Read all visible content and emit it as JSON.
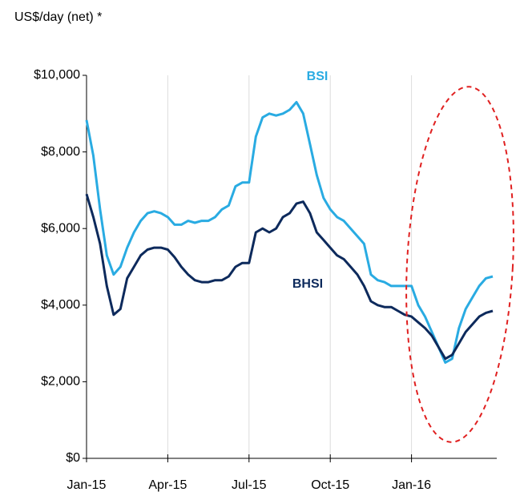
{
  "chart_data": {
    "type": "line",
    "y_axis_label": "US$/day (net) *",
    "x": [
      0,
      0.25,
      0.5,
      0.75,
      1,
      1.25,
      1.5,
      1.75,
      2,
      2.25,
      2.5,
      2.75,
      3,
      3.25,
      3.5,
      3.75,
      4,
      4.25,
      4.5,
      4.75,
      5,
      5.25,
      5.5,
      5.75,
      6,
      6.25,
      6.5,
      6.75,
      7,
      7.25,
      7.5,
      7.75,
      8,
      8.25,
      8.5,
      8.75,
      9,
      9.25,
      9.5,
      9.75,
      10,
      10.25,
      10.5,
      10.75,
      11,
      11.25,
      11.5,
      11.75,
      12,
      12.25,
      12.5,
      12.75,
      13,
      13.25,
      13.5,
      13.75,
      14,
      14.25,
      14.5,
      14.75,
      15
    ],
    "series": [
      {
        "name": "BSI",
        "color": "#29abe2",
        "values": [
          8830,
          7900,
          6500,
          5300,
          4800,
          5000,
          5500,
          5900,
          6200,
          6400,
          6450,
          6400,
          6300,
          6100,
          6100,
          6200,
          6150,
          6200,
          6200,
          6300,
          6500,
          6600,
          7100,
          7200,
          7200,
          8400,
          8900,
          9000,
          8950,
          9000,
          9100,
          9300,
          9000,
          8200,
          7400,
          6800,
          6500,
          6300,
          6200,
          6000,
          5800,
          5600,
          4800,
          4650,
          4600,
          4500,
          4500,
          4500,
          4500,
          4000,
          3700,
          3300,
          2900,
          2500,
          2600,
          3400,
          3900,
          4200,
          4500,
          4700,
          4750
        ]
      },
      {
        "name": "BHSI",
        "color": "#0d2a5c",
        "values": [
          6900,
          6300,
          5600,
          4500,
          3750,
          3900,
          4700,
          5000,
          5300,
          5450,
          5500,
          5500,
          5450,
          5250,
          5000,
          4800,
          4650,
          4600,
          4600,
          4650,
          4650,
          4750,
          5000,
          5100,
          5100,
          5900,
          6000,
          5900,
          6000,
          6300,
          6400,
          6650,
          6700,
          6400,
          5900,
          5700,
          5500,
          5300,
          5200,
          5000,
          4800,
          4500,
          4100,
          4000,
          3950,
          3950,
          3850,
          3750,
          3700,
          3550,
          3400,
          3200,
          2900,
          2600,
          2700,
          3000,
          3300,
          3500,
          3700,
          3800,
          3850
        ]
      }
    ],
    "xlim": [
      0,
      15
    ],
    "xticks": [
      {
        "value": 0,
        "label": "Jan-15"
      },
      {
        "value": 3,
        "label": "Apr-15"
      },
      {
        "value": 6,
        "label": "Jul-15"
      },
      {
        "value": 9,
        "label": "Oct-15"
      },
      {
        "value": 12,
        "label": "Jan-16"
      }
    ],
    "ylim": [
      0,
      10000
    ],
    "yticks": [
      {
        "value": 0,
        "label": "$0"
      },
      {
        "value": 2000,
        "label": "$2,000"
      },
      {
        "value": 4000,
        "label": "$4,000"
      },
      {
        "value": 6000,
        "label": "$6,000"
      },
      {
        "value": 8000,
        "label": "$8,000"
      },
      {
        "value": 10000,
        "label": "$10,000"
      }
    ],
    "grid": "x"
  }
}
